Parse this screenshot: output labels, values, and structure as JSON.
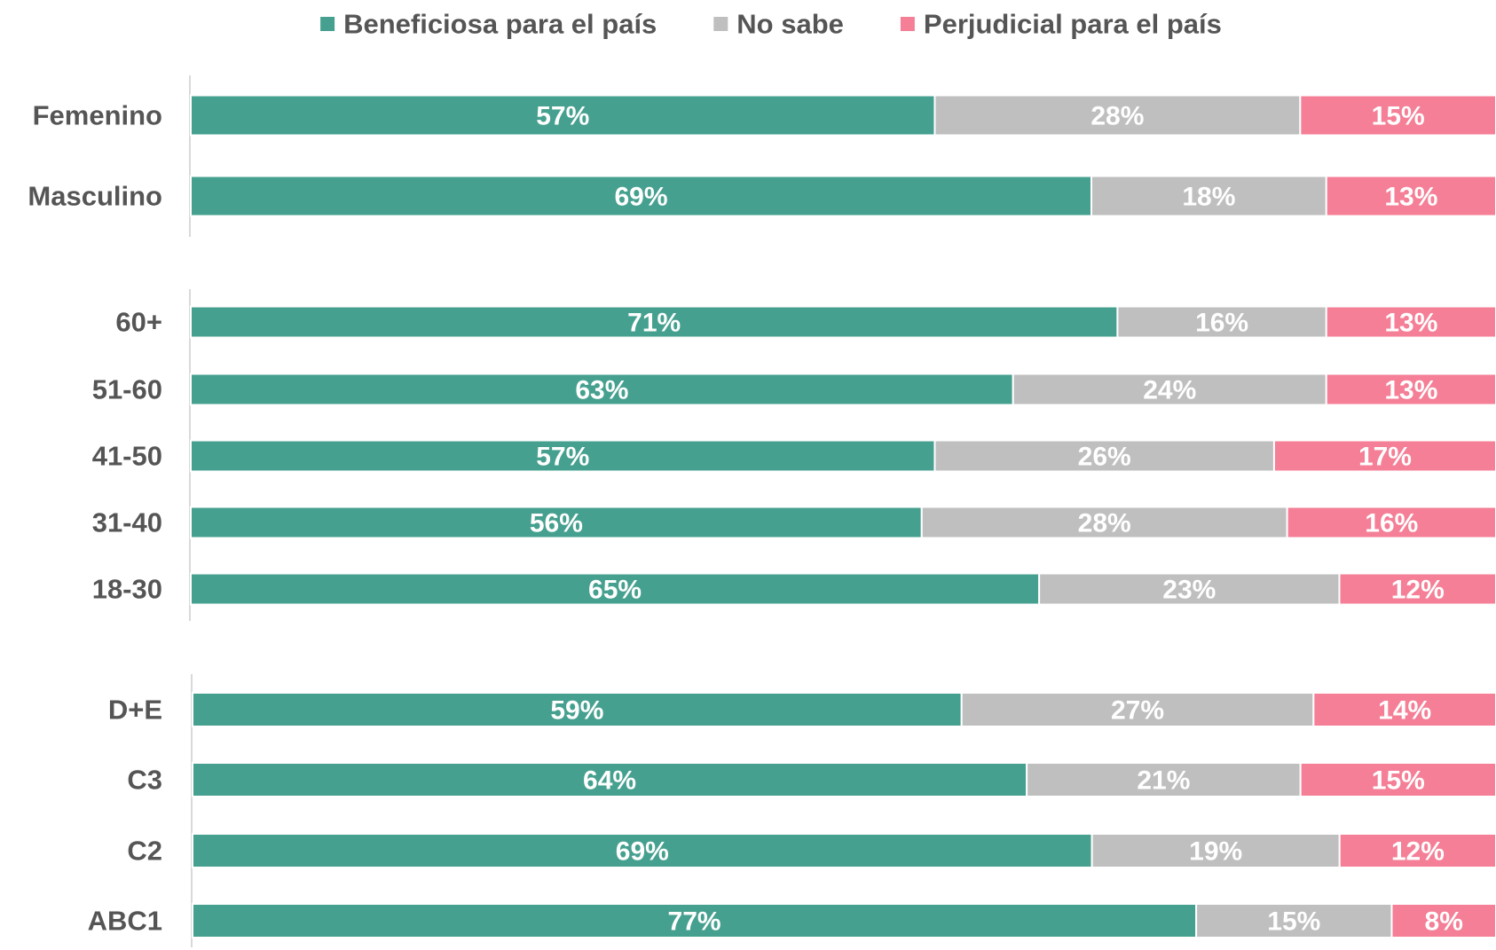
{
  "chart_data": {
    "type": "stacked_bar_horizontal",
    "categories": [
      "Femenino",
      "Masculino",
      "60+",
      "51-60",
      "41-50",
      "31-40",
      "18-30",
      "D+E",
      "C3",
      "C2",
      "ABC1"
    ],
    "xlim": [
      0,
      100
    ],
    "series": [
      {
        "name": "Beneficiosa para el país",
        "color": "#46a08f",
        "values": [
          57,
          69,
          71,
          63,
          57,
          56,
          65,
          59,
          64,
          69,
          77
        ],
        "value_labels": [
          "57%",
          "69%",
          "71%",
          "63%",
          "57%",
          "56%",
          "65%",
          "59%",
          "64%",
          "69%",
          "77%"
        ]
      },
      {
        "name": "No sabe",
        "color": "#bfbfbf",
        "values": [
          28,
          18,
          16,
          24,
          26,
          28,
          23,
          27,
          21,
          19,
          15
        ],
        "value_labels": [
          "28%",
          "18%",
          "16%",
          "24%",
          "26%",
          "28%",
          "23%",
          "27%",
          "21%",
          "19%",
          "15%"
        ]
      },
      {
        "name": "Perjudicial para el país",
        "color": "#f47f96",
        "values": [
          15,
          13,
          13,
          13,
          17,
          16,
          12,
          14,
          15,
          12,
          8
        ],
        "value_labels": [
          "15%",
          "13%",
          "13%",
          "13%",
          "17%",
          "16%",
          "12%",
          "14%",
          "15%",
          "12%",
          "8%"
        ]
      }
    ],
    "legend": "top"
  }
}
